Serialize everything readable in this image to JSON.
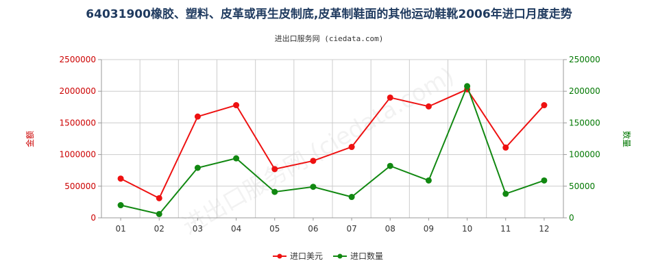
{
  "title": "64031900橡胶、塑料、皮革或再生皮制底,皮革制鞋面的其他运动鞋靴2006年进口月度走势",
  "subtitle": "进出口服务网 (ciedata.com)",
  "watermark": "进出口服务网 (ciedata.com)",
  "colors": {
    "left_axis": "#cc0000",
    "right_axis": "#007700",
    "series_amount": "#ee1111",
    "series_qty": "#118811",
    "grid": "#cccccc"
  },
  "chart_data": {
    "type": "line",
    "categories": [
      "01",
      "02",
      "03",
      "04",
      "05",
      "06",
      "07",
      "08",
      "09",
      "10",
      "11",
      "12"
    ],
    "y_left": {
      "label": "金额",
      "lim": [
        0,
        2500000
      ],
      "ticks": [
        0,
        500000,
        1000000,
        1500000,
        2000000,
        2500000
      ],
      "tick_labels": [
        "0",
        "500000",
        "1000000",
        "1500000",
        "2000000",
        "2500000"
      ]
    },
    "y_right": {
      "label": "数量",
      "lim": [
        0,
        250000
      ],
      "ticks": [
        0,
        50000,
        100000,
        150000,
        200000,
        250000
      ],
      "tick_labels": [
        "0",
        "50000",
        "100000",
        "150000",
        "200000",
        "250000"
      ]
    },
    "series": [
      {
        "name": "进口美元",
        "axis": "left",
        "values": [
          620000,
          310000,
          1600000,
          1780000,
          770000,
          900000,
          1120000,
          1900000,
          1760000,
          2030000,
          1110000,
          1780000
        ]
      },
      {
        "name": "进口数量",
        "axis": "right",
        "values": [
          20000,
          6000,
          79000,
          94000,
          41000,
          49000,
          33000,
          82000,
          59000,
          208000,
          38000,
          59000
        ]
      }
    ],
    "grid": true,
    "legend_position": "bottom-center"
  }
}
